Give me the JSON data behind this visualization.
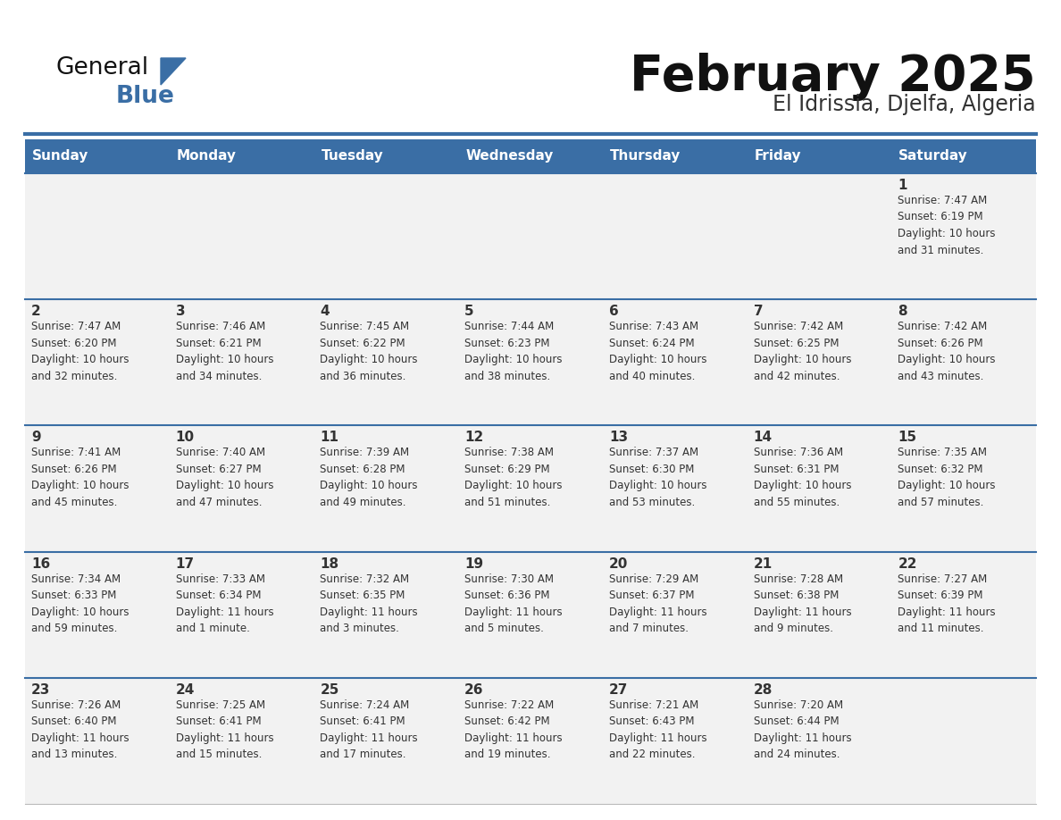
{
  "title": "February 2025",
  "subtitle": "El Idrissia, Djelfa, Algeria",
  "header_color": "#3a6ea5",
  "header_text_color": "#ffffff",
  "bg_color": "#ffffff",
  "cell_bg": "#f2f2f2",
  "separator_color": "#3a6ea5",
  "text_color": "#333333",
  "days_of_week": [
    "Sunday",
    "Monday",
    "Tuesday",
    "Wednesday",
    "Thursday",
    "Friday",
    "Saturday"
  ],
  "calendar_data": [
    [
      {
        "day": "",
        "info": ""
      },
      {
        "day": "",
        "info": ""
      },
      {
        "day": "",
        "info": ""
      },
      {
        "day": "",
        "info": ""
      },
      {
        "day": "",
        "info": ""
      },
      {
        "day": "",
        "info": ""
      },
      {
        "day": "1",
        "info": "Sunrise: 7:47 AM\nSunset: 6:19 PM\nDaylight: 10 hours\nand 31 minutes."
      }
    ],
    [
      {
        "day": "2",
        "info": "Sunrise: 7:47 AM\nSunset: 6:20 PM\nDaylight: 10 hours\nand 32 minutes."
      },
      {
        "day": "3",
        "info": "Sunrise: 7:46 AM\nSunset: 6:21 PM\nDaylight: 10 hours\nand 34 minutes."
      },
      {
        "day": "4",
        "info": "Sunrise: 7:45 AM\nSunset: 6:22 PM\nDaylight: 10 hours\nand 36 minutes."
      },
      {
        "day": "5",
        "info": "Sunrise: 7:44 AM\nSunset: 6:23 PM\nDaylight: 10 hours\nand 38 minutes."
      },
      {
        "day": "6",
        "info": "Sunrise: 7:43 AM\nSunset: 6:24 PM\nDaylight: 10 hours\nand 40 minutes."
      },
      {
        "day": "7",
        "info": "Sunrise: 7:42 AM\nSunset: 6:25 PM\nDaylight: 10 hours\nand 42 minutes."
      },
      {
        "day": "8",
        "info": "Sunrise: 7:42 AM\nSunset: 6:26 PM\nDaylight: 10 hours\nand 43 minutes."
      }
    ],
    [
      {
        "day": "9",
        "info": "Sunrise: 7:41 AM\nSunset: 6:26 PM\nDaylight: 10 hours\nand 45 minutes."
      },
      {
        "day": "10",
        "info": "Sunrise: 7:40 AM\nSunset: 6:27 PM\nDaylight: 10 hours\nand 47 minutes."
      },
      {
        "day": "11",
        "info": "Sunrise: 7:39 AM\nSunset: 6:28 PM\nDaylight: 10 hours\nand 49 minutes."
      },
      {
        "day": "12",
        "info": "Sunrise: 7:38 AM\nSunset: 6:29 PM\nDaylight: 10 hours\nand 51 minutes."
      },
      {
        "day": "13",
        "info": "Sunrise: 7:37 AM\nSunset: 6:30 PM\nDaylight: 10 hours\nand 53 minutes."
      },
      {
        "day": "14",
        "info": "Sunrise: 7:36 AM\nSunset: 6:31 PM\nDaylight: 10 hours\nand 55 minutes."
      },
      {
        "day": "15",
        "info": "Sunrise: 7:35 AM\nSunset: 6:32 PM\nDaylight: 10 hours\nand 57 minutes."
      }
    ],
    [
      {
        "day": "16",
        "info": "Sunrise: 7:34 AM\nSunset: 6:33 PM\nDaylight: 10 hours\nand 59 minutes."
      },
      {
        "day": "17",
        "info": "Sunrise: 7:33 AM\nSunset: 6:34 PM\nDaylight: 11 hours\nand 1 minute."
      },
      {
        "day": "18",
        "info": "Sunrise: 7:32 AM\nSunset: 6:35 PM\nDaylight: 11 hours\nand 3 minutes."
      },
      {
        "day": "19",
        "info": "Sunrise: 7:30 AM\nSunset: 6:36 PM\nDaylight: 11 hours\nand 5 minutes."
      },
      {
        "day": "20",
        "info": "Sunrise: 7:29 AM\nSunset: 6:37 PM\nDaylight: 11 hours\nand 7 minutes."
      },
      {
        "day": "21",
        "info": "Sunrise: 7:28 AM\nSunset: 6:38 PM\nDaylight: 11 hours\nand 9 minutes."
      },
      {
        "day": "22",
        "info": "Sunrise: 7:27 AM\nSunset: 6:39 PM\nDaylight: 11 hours\nand 11 minutes."
      }
    ],
    [
      {
        "day": "23",
        "info": "Sunrise: 7:26 AM\nSunset: 6:40 PM\nDaylight: 11 hours\nand 13 minutes."
      },
      {
        "day": "24",
        "info": "Sunrise: 7:25 AM\nSunset: 6:41 PM\nDaylight: 11 hours\nand 15 minutes."
      },
      {
        "day": "25",
        "info": "Sunrise: 7:24 AM\nSunset: 6:41 PM\nDaylight: 11 hours\nand 17 minutes."
      },
      {
        "day": "26",
        "info": "Sunrise: 7:22 AM\nSunset: 6:42 PM\nDaylight: 11 hours\nand 19 minutes."
      },
      {
        "day": "27",
        "info": "Sunrise: 7:21 AM\nSunset: 6:43 PM\nDaylight: 11 hours\nand 22 minutes."
      },
      {
        "day": "28",
        "info": "Sunrise: 7:20 AM\nSunset: 6:44 PM\nDaylight: 11 hours\nand 24 minutes."
      },
      {
        "day": "",
        "info": ""
      }
    ]
  ]
}
